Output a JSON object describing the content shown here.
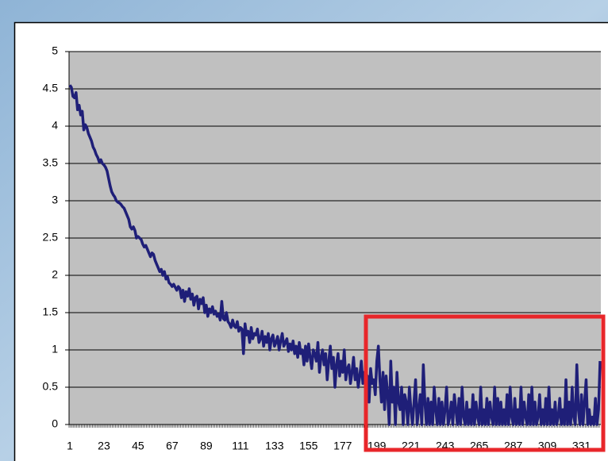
{
  "chart_data": {
    "type": "line",
    "categories": [
      "1",
      null,
      null,
      null,
      null,
      null,
      null,
      null,
      null,
      null,
      null,
      null,
      null,
      null,
      null,
      null,
      null,
      null,
      null,
      null,
      null,
      null,
      "23",
      null,
      null,
      null,
      null,
      null,
      null,
      null,
      null,
      null,
      null,
      null,
      null,
      null,
      null,
      null,
      null,
      null,
      null,
      null,
      null,
      null,
      "45",
      null,
      null,
      null,
      null,
      null,
      null,
      null,
      null,
      null,
      null,
      null,
      null,
      null,
      null,
      null,
      null,
      null,
      null,
      null,
      null,
      null,
      "67",
      null,
      null,
      null,
      null,
      null,
      null,
      null,
      null,
      null,
      null,
      null,
      null,
      null,
      null,
      null,
      null,
      null,
      null,
      null,
      null,
      null,
      "89",
      null,
      null,
      null,
      null,
      null,
      null,
      null,
      null,
      null,
      null,
      null,
      null,
      null,
      null,
      null,
      null,
      null,
      null,
      null,
      null,
      null,
      "111",
      null,
      null,
      null,
      null,
      null,
      null,
      null,
      null,
      null,
      null,
      null,
      null,
      null,
      null,
      null,
      null,
      null,
      null,
      null,
      null,
      null,
      "133",
      null,
      null,
      null,
      null,
      null,
      null,
      null,
      null,
      null,
      null,
      null,
      null,
      null,
      null,
      null,
      null,
      null,
      null,
      null,
      null,
      null,
      "155",
      null,
      null,
      null,
      null,
      null,
      null,
      null,
      null,
      null,
      null,
      null,
      null,
      null,
      null,
      null,
      null,
      null,
      null,
      null,
      null,
      null,
      "177",
      null,
      null,
      null,
      null,
      null,
      null,
      null,
      null,
      null,
      null,
      null,
      null,
      null,
      null,
      null,
      null,
      null,
      null,
      null,
      null,
      null,
      "199",
      null,
      null,
      null,
      null,
      null,
      null,
      null,
      null,
      null,
      null,
      null,
      null,
      null,
      null,
      null,
      null,
      null,
      null,
      null,
      null,
      null,
      "221",
      null,
      null,
      null,
      null,
      null,
      null,
      null,
      null,
      null,
      null,
      null,
      null,
      null,
      null,
      null,
      null,
      null,
      null,
      null,
      null,
      null,
      "243",
      null,
      null,
      null,
      null,
      null,
      null,
      null,
      null,
      null,
      null,
      null,
      null,
      null,
      null,
      null,
      null,
      null,
      null,
      null,
      null,
      null,
      "265",
      null,
      null,
      null,
      null,
      null,
      null,
      null,
      null,
      null,
      null,
      null,
      null,
      null,
      null,
      null,
      null,
      null,
      null,
      null,
      null,
      null,
      "287",
      null,
      null,
      null,
      null,
      null,
      null,
      null,
      null,
      null,
      null,
      null,
      null,
      null,
      null,
      null,
      null,
      null,
      null,
      null,
      null,
      null,
      "309",
      null,
      null,
      null,
      null,
      null,
      null,
      null,
      null,
      null,
      null,
      null,
      null,
      null,
      null,
      null,
      null,
      null,
      null,
      null,
      null,
      null,
      "331",
      null,
      null,
      null,
      null,
      null,
      null,
      null,
      null,
      null,
      null,
      null,
      null
    ],
    "values": [
      4.55,
      4.52,
      4.4,
      4.38,
      4.45,
      4.22,
      4.28,
      4.15,
      4.2,
      3.95,
      4.02,
      3.98,
      3.9,
      3.85,
      3.8,
      3.72,
      3.68,
      3.62,
      3.58,
      3.52,
      3.55,
      3.5,
      3.48,
      3.45,
      3.4,
      3.3,
      3.2,
      3.12,
      3.08,
      3.05,
      3.0,
      2.98,
      2.97,
      2.95,
      2.92,
      2.9,
      2.85,
      2.8,
      2.75,
      2.65,
      2.62,
      2.65,
      2.6,
      2.5,
      2.52,
      2.5,
      2.48,
      2.42,
      2.38,
      2.4,
      2.35,
      2.3,
      2.25,
      2.3,
      2.28,
      2.2,
      2.15,
      2.1,
      2.05,
      2.08,
      2.0,
      2.05,
      1.95,
      1.98,
      1.9,
      1.88,
      1.85,
      1.88,
      1.84,
      1.8,
      1.85,
      1.82,
      1.7,
      1.8,
      1.65,
      1.78,
      1.72,
      1.82,
      1.68,
      1.75,
      1.6,
      1.7,
      1.72,
      1.55,
      1.68,
      1.62,
      1.7,
      1.5,
      1.6,
      1.45,
      1.55,
      1.5,
      1.58,
      1.48,
      1.52,
      1.45,
      1.48,
      1.4,
      1.65,
      1.42,
      1.4,
      1.5,
      1.38,
      1.35,
      1.3,
      1.4,
      1.32,
      1.3,
      1.38,
      1.25,
      1.3,
      1.28,
      0.95,
      1.35,
      1.2,
      1.25,
      1.1,
      1.3,
      1.15,
      1.22,
      1.2,
      1.28,
      1.1,
      1.15,
      1.25,
      1.05,
      1.18,
      1.1,
      1.22,
      1.0,
      1.15,
      1.2,
      1.05,
      1.1,
      1.18,
      1.0,
      1.12,
      1.22,
      1.05,
      1.1,
      1.15,
      0.98,
      1.08,
      1.0,
      1.12,
      0.95,
      1.05,
      0.9,
      1.1,
      0.95,
      1.0,
      0.8,
      1.05,
      0.85,
      1.08,
      0.9,
      0.75,
      1.0,
      0.95,
      0.85,
      1.1,
      0.7,
      0.9,
      1.0,
      0.8,
      0.95,
      0.6,
      0.85,
      1.05,
      0.75,
      0.9,
      0.5,
      0.8,
      0.95,
      0.65,
      0.85,
      0.7,
      1.0,
      0.6,
      0.75,
      0.8,
      0.55,
      0.7,
      0.9,
      0.6,
      0.75,
      0.5,
      0.65,
      0.85,
      0.55,
      0.7,
      0.5,
      0.65,
      0.3,
      0.75,
      0.55,
      0.6,
      0.4,
      0.85,
      1.05,
      0.6,
      0.3,
      0.7,
      0.2,
      0.65,
      0.4,
      0,
      0.85,
      0.3,
      0.5,
      0,
      0.7,
      0.3,
      0.2,
      0.5,
      0,
      0.4,
      0.3,
      0,
      0.5,
      0.2,
      0,
      0.3,
      0.6,
      0,
      0.2,
      0.4,
      0,
      0.8,
      0.3,
      0,
      0.35,
      0,
      0.3,
      0,
      0.5,
      0.2,
      0,
      0.35,
      0,
      0.3,
      0,
      0.2,
      0.5,
      0,
      0.1,
      0.3,
      0,
      0.4,
      0.2,
      0,
      0.35,
      0,
      0.5,
      0.1,
      0,
      0.3,
      0,
      0.2,
      0,
      0.4,
      0,
      0.3,
      0.1,
      0,
      0.5,
      0,
      0.2,
      0,
      0.35,
      0,
      0.3,
      0.1,
      0,
      0.5,
      0,
      0.35,
      0,
      0.3,
      0,
      0.2,
      0,
      0.4,
      0,
      0.5,
      0.1,
      0,
      0.35,
      0,
      0.2,
      0,
      0.5,
      0,
      0.3,
      0.1,
      0,
      0.4,
      0,
      0.5,
      0,
      0.3,
      0,
      0.1,
      0.4,
      0,
      0.2,
      0,
      0.35,
      0,
      0.5,
      0,
      0.2,
      0,
      0.3,
      0,
      0.1,
      0.35,
      0,
      0.2,
      0,
      0.6,
      0,
      0.3,
      0,
      0.5,
      0.1,
      0,
      0.8,
      0.2,
      0,
      0.4,
      0,
      0.3,
      0.6,
      0,
      0.2,
      0,
      0.1,
      0,
      0.35,
      0,
      0.2,
      0.85
    ],
    "color": "#1f1f78",
    "ylim": [
      0,
      5
    ],
    "yticks": [
      0,
      0.5,
      1,
      1.5,
      2,
      2.5,
      3,
      3.5,
      4,
      4.5,
      5
    ],
    "grid": true
  }
}
